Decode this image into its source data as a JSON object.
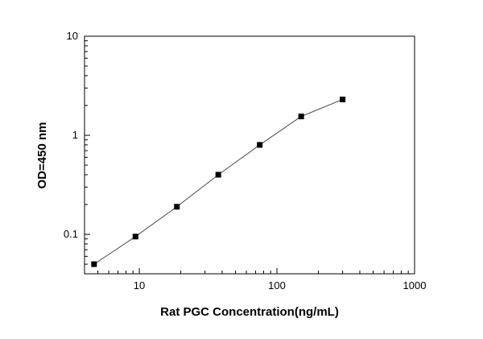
{
  "chart_data": {
    "type": "line",
    "title": "",
    "xlabel": "Rat PGC Concentration(ng/mL)",
    "ylabel": "OD=450 nm",
    "xscale": "log",
    "yscale": "log",
    "xlim": [
      4,
      1000
    ],
    "ylim": [
      0.04,
      10
    ],
    "x": [
      4.69,
      9.38,
      18.75,
      37.5,
      75,
      150,
      300
    ],
    "y": [
      0.05,
      0.095,
      0.19,
      0.4,
      0.8,
      1.55,
      2.3
    ],
    "x_major_ticks": [
      10,
      100,
      1000
    ],
    "x_tick_labels": [
      "10",
      "100",
      "1000"
    ],
    "y_major_ticks": [
      0.1,
      1,
      10
    ],
    "y_tick_labels": [
      "0.1",
      "1",
      "10"
    ],
    "grid": false,
    "legend": false,
    "marker": "square",
    "marker_color": "#000000",
    "line_color": "#4a4a4a",
    "frame_color": "#000000",
    "background_color": "#ffffff"
  }
}
